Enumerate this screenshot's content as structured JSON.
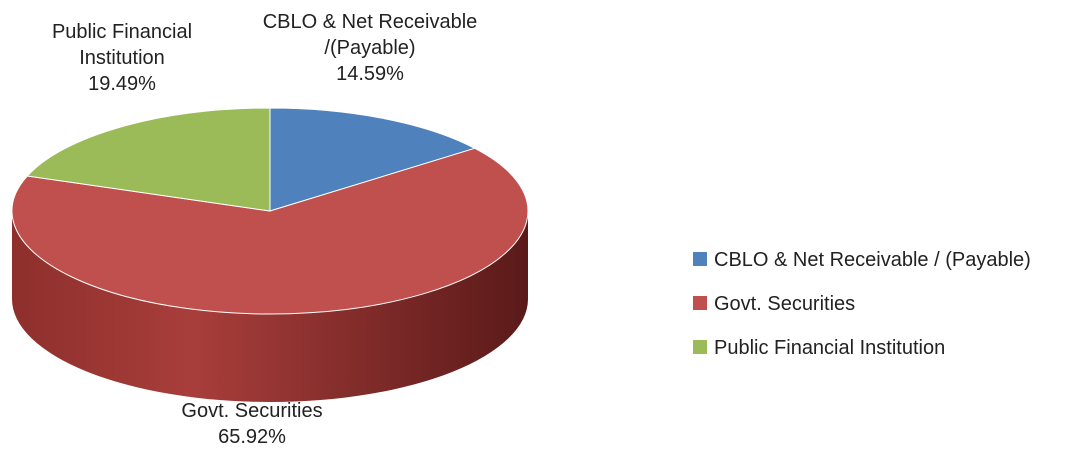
{
  "chart_data": {
    "type": "pie",
    "style": "3d",
    "title": "",
    "legend_position": "right",
    "slices": [
      {
        "name": "CBLO & Net Receivable / (Payable)",
        "value": 14.59,
        "label_lines": [
          "CBLO & Net Receivable",
          "/(Payable)",
          "14.59%"
        ],
        "color": "#4F81BD",
        "side_color": "#2F4F79"
      },
      {
        "name": "Govt. Securities",
        "value": 65.92,
        "label_lines": [
          "Govt. Securities",
          "65.92%"
        ],
        "color": "#C0504D",
        "side_color": "#7A2624"
      },
      {
        "name": "Public Financial Institution",
        "value": 19.49,
        "label_lines": [
          "Public Financial",
          "Institution",
          "19.49%"
        ],
        "color": "#9BBB59",
        "side_color": "#5E7A2B"
      }
    ]
  }
}
